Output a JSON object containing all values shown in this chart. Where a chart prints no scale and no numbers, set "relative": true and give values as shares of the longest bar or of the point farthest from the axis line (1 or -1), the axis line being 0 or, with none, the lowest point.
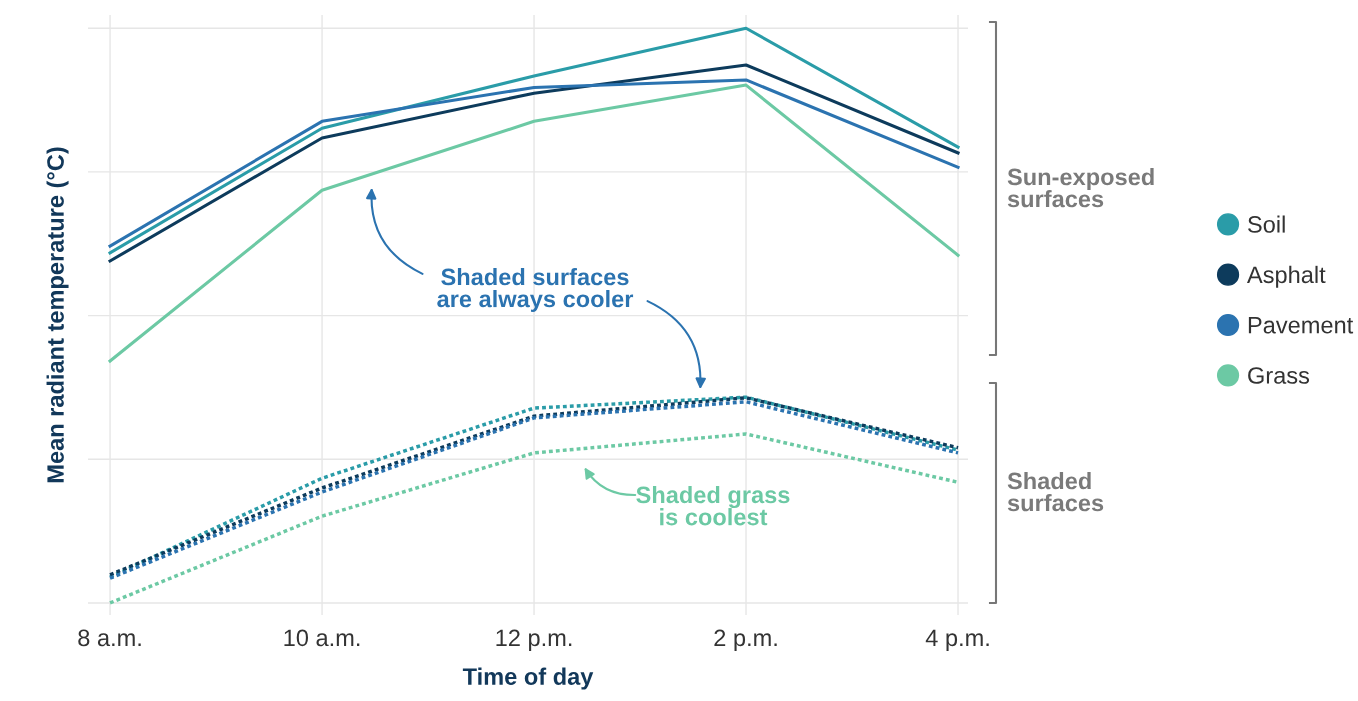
{
  "chart_data": {
    "type": "line",
    "relative": true,
    "xlabel": "Time of day",
    "ylabel": "Mean radiant temperature (°C)",
    "categories": [
      "8 a.m.",
      "10 a.m.",
      "12 p.m.",
      "2 p.m.",
      "4 p.m."
    ],
    "series": [
      {
        "name": "Soil",
        "color": "#2a9ca8",
        "line_style": "solid",
        "values": [
          0.609,
          0.826,
          0.917,
          1,
          0.793
        ]
      },
      {
        "name": "Asphalt",
        "color": "#0d3b5c",
        "line_style": "solid",
        "values": [
          0.595,
          0.809,
          0.887,
          0.936,
          0.783
        ]
      },
      {
        "name": "Pavement",
        "color": "#2b73b0",
        "line_style": "solid",
        "values": [
          0.621,
          0.838,
          0.897,
          0.91,
          0.758
        ]
      },
      {
        "name": "Grass",
        "color": "#6cc9a4",
        "line_style": "solid",
        "values": [
          0.421,
          0.718,
          0.838,
          0.901,
          0.605
        ]
      },
      {
        "color": "#2a9ca8",
        "line_style": "dotted",
        "values": [
          0.045,
          0.217,
          0.339,
          0.358,
          0.266
        ]
      },
      {
        "color": "#0d3b5c",
        "line_style": "dotted",
        "values": [
          0.049,
          0.2,
          0.325,
          0.357,
          0.27
        ]
      },
      {
        "color": "#2b73b0",
        "line_style": "dotted",
        "values": [
          0.043,
          0.193,
          0.322,
          0.35,
          0.261
        ]
      },
      {
        "color": "#6cc9a4",
        "line_style": "dotted",
        "values": [
          0,
          0.151,
          0.261,
          0.294,
          0.21
        ]
      }
    ],
    "annotations": [
      "Shaded surfaces\nare always cooler",
      "Shaded grass\nis coolest",
      "Sun-exposed\nsurfaces",
      "Shaded\nsurfaces"
    ],
    "grid": true,
    "legend": "right"
  }
}
